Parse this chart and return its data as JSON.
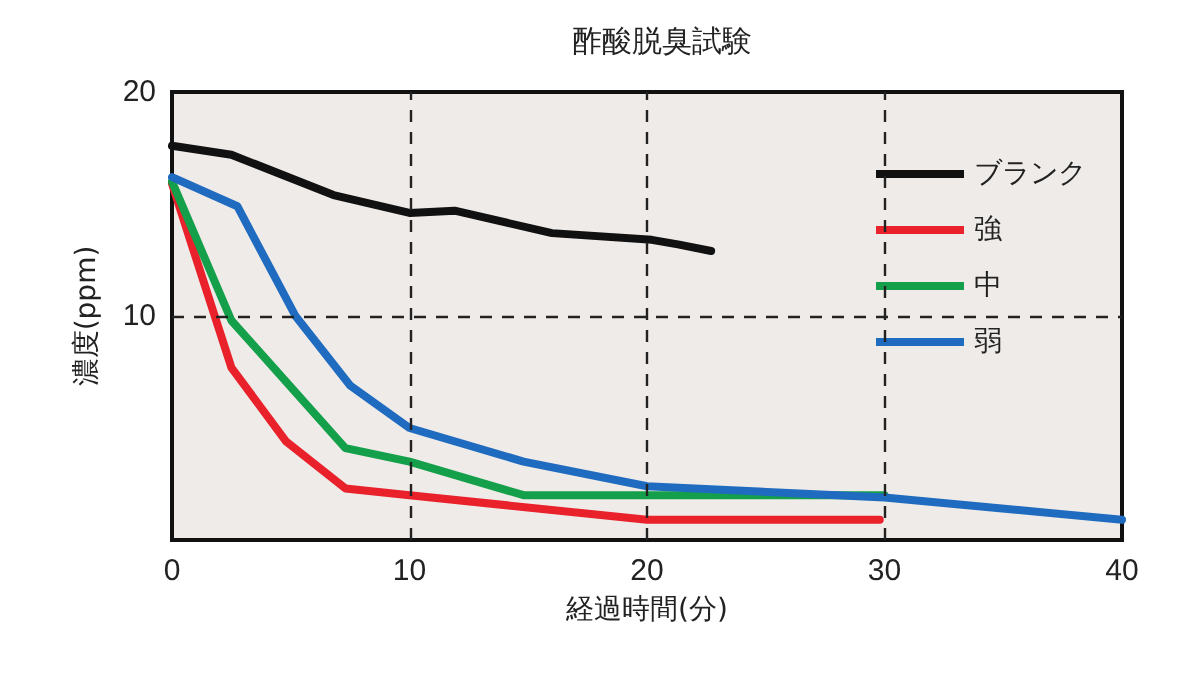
{
  "chart_data": {
    "type": "line",
    "title": "酢酸脱臭試験",
    "xlabel": "経過時間(分)",
    "ylabel": "濃度(ppm)",
    "xlim": [
      0,
      40
    ],
    "xticks": [
      0,
      10,
      20,
      30,
      40
    ],
    "ylim": [
      0,
      20
    ],
    "yticks": [
      {
        "value": 0,
        "label": null
      },
      10,
      20
    ],
    "grid": true,
    "line_style": "solid",
    "marker": "none",
    "legend": "top right",
    "series": [
      {
        "name": "ブランク",
        "color": "#111111",
        "x": [
          0,
          2.5,
          6.8,
          10,
          11.9,
          16,
          20.2,
          21.3,
          22.7
        ],
        "values": [
          17.6,
          17.2,
          15.4,
          14.6,
          14.7,
          13.7,
          13.4,
          13.2,
          12.9
        ]
      },
      {
        "name": "強",
        "color": "#e8212a",
        "x": [
          0,
          2.5,
          4.8,
          7.3,
          10,
          20,
          29.8
        ],
        "values": [
          15.9,
          7.7,
          4.4,
          2.3,
          2.0,
          0.9,
          0.9
        ]
      },
      {
        "name": "中",
        "color": "#14a04a",
        "x": [
          0,
          2.5,
          7.3,
          10,
          14.8,
          20,
          30
        ],
        "values": [
          16,
          9.8,
          4.1,
          3.5,
          2.0,
          2.0,
          2.0
        ]
      },
      {
        "name": "弱",
        "color": "#1f6bbf",
        "x": [
          0,
          2.75,
          5.2,
          7.5,
          10,
          14.8,
          20,
          30,
          40
        ],
        "values": [
          16.2,
          14.9,
          10.0,
          6.9,
          5.0,
          3.5,
          2.4,
          1.9,
          0.9
        ]
      }
    ]
  }
}
